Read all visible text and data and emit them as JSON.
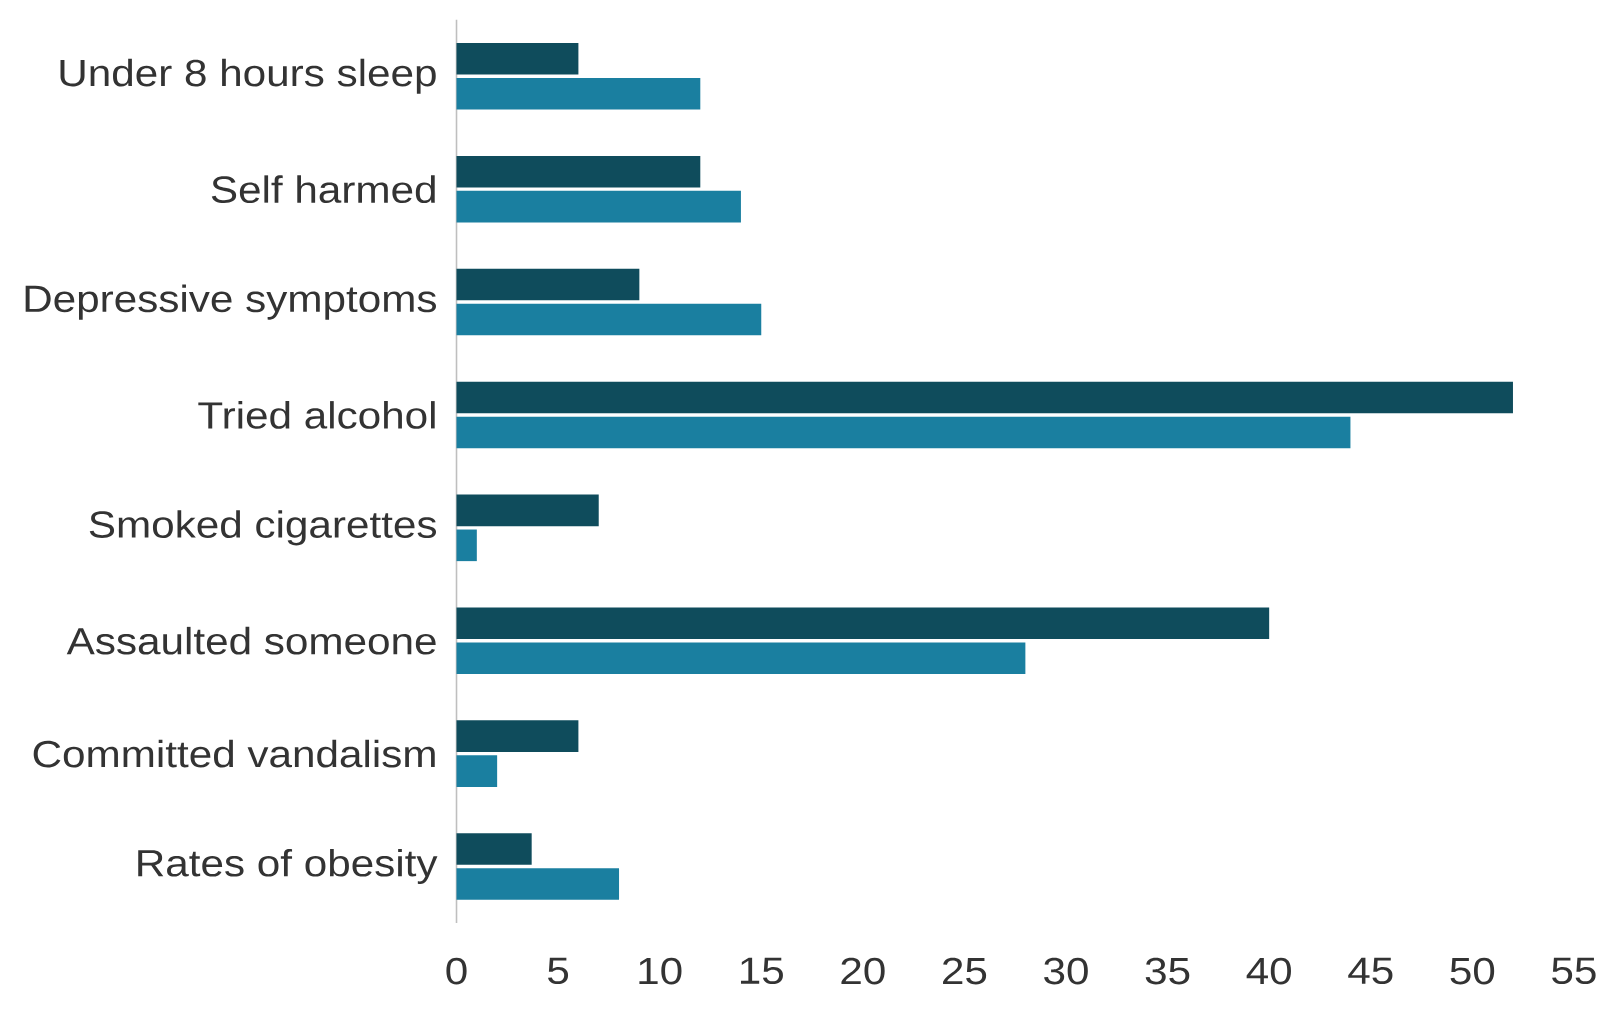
{
  "chart_data": {
    "type": "bar",
    "orientation": "horizontal",
    "categories": [
      "Under 8 hours sleep",
      "Self harmed",
      "Depressive symptoms",
      "Tried alcohol",
      "Smoked cigarettes",
      "Assaulted someone",
      "Committed vandalism",
      "Rates of obesity"
    ],
    "series": [
      {
        "color": "#0f4c5c",
        "values": [
          6,
          12,
          9,
          52,
          7,
          40,
          6,
          3.7
        ]
      },
      {
        "color": "#1a7fa0",
        "values": [
          12,
          14,
          15,
          44,
          1,
          28,
          2,
          8
        ]
      }
    ],
    "xlim": [
      0,
      55
    ],
    "xticks": [
      0,
      5,
      10,
      15,
      20,
      25,
      30,
      35,
      40,
      45,
      50,
      55
    ]
  }
}
